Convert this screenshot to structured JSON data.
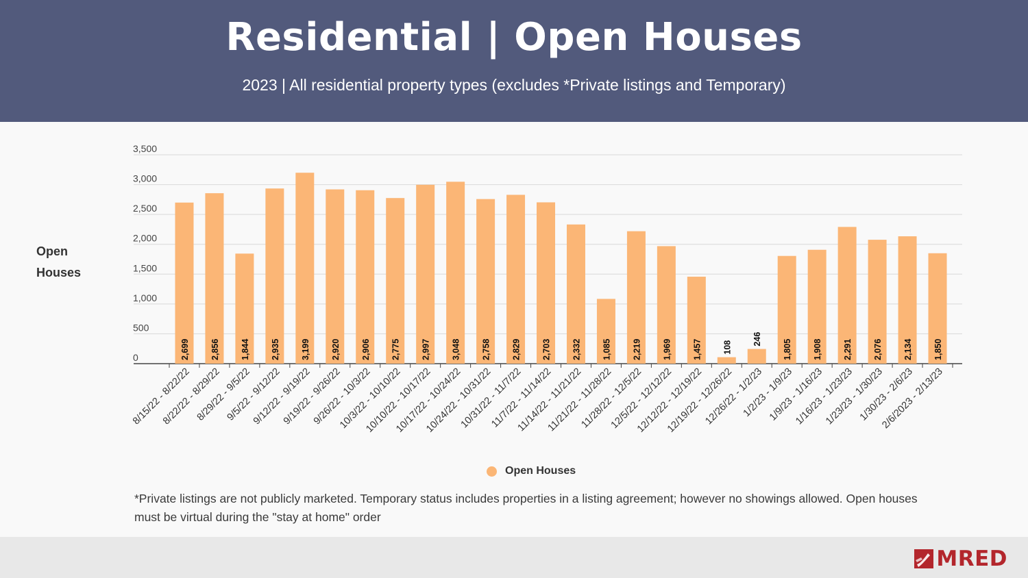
{
  "header": {
    "title": "Residential | Open Houses",
    "subtitle": "2023 | All residential property types (excludes *Private listings and Temporary)"
  },
  "chart_data": {
    "type": "bar",
    "ylabel_lines": [
      "Open",
      "Houses"
    ],
    "xlabel": "",
    "ylim": [
      0,
      3500
    ],
    "yticks": [
      0,
      500,
      1000,
      1500,
      2000,
      2500,
      3000,
      3500
    ],
    "ytick_labels": [
      "0",
      "500",
      "1,000",
      "1,500",
      "2,000",
      "2,500",
      "3,000",
      "3,500"
    ],
    "grid": true,
    "legend_position": "bottom",
    "series": [
      {
        "name": "Open Houses",
        "color": "#fbb676",
        "values": [
          2699,
          2856,
          1844,
          2935,
          3199,
          2920,
          2906,
          2775,
          2997,
          3048,
          2758,
          2829,
          2703,
          2332,
          1085,
          2219,
          1969,
          1457,
          108,
          246,
          1805,
          1908,
          2291,
          2076,
          2134,
          1850
        ],
        "labels": [
          "2,699",
          "2,856",
          "1,844",
          "2,935",
          "3,199",
          "2,920",
          "2,906",
          "2,775",
          "2,997",
          "3,048",
          "2,758",
          "2,829",
          "2,703",
          "2,332",
          "1,085",
          "2,219",
          "1,969",
          "1,457",
          "108",
          "246",
          "1,805",
          "1,908",
          "2,291",
          "2,076",
          "2,134",
          "1,850"
        ]
      }
    ],
    "categories": [
      "8/15/22 - 8/22/22",
      "8/22/22 - 8/29/22",
      "8/29/22 - 9/5/22",
      "9/5/22 - 9/12/22",
      "9/12/22 - 9/19/22",
      "9/19/22 - 9/26/22",
      "9/26/22 - 10/3/22",
      "10/3/22 - 10/10/22",
      "10/10/22 - 10/17/22",
      "10/17/22 - 10/24/22",
      "10/24/22 - 10/31/22",
      "10/31/22 - 11/7/22",
      "11/7/22 - 11/14/22",
      "11/14/22 - 11/21/22",
      "11/21/22 - 11/28/22",
      "11/28/22 - 12/5/22",
      "12/5/22 - 12/12/22",
      "12/12/22 - 12/19/22",
      "12/19/22 - 12/26/22",
      "12/26/22 - 1/2/23",
      "1/2/23 - 1/9/23",
      "1/9/23 - 1/16/23",
      "1/16/23 - 1/23/23",
      "1/23/23 - 1/30/23",
      "1/30/23 - 2/6/23",
      "2/6/2023 - 2/13/23"
    ]
  },
  "legend": {
    "label": "Open Houses",
    "color": "#fbb676"
  },
  "footnote": "*Private listings are not publicly marketed. Temporary status includes properties in a listing agreement; however no showings allowed. Open houses must be virtual during the \"stay at home\" order",
  "logo": {
    "text": "MRED",
    "color": "#b3262c"
  }
}
